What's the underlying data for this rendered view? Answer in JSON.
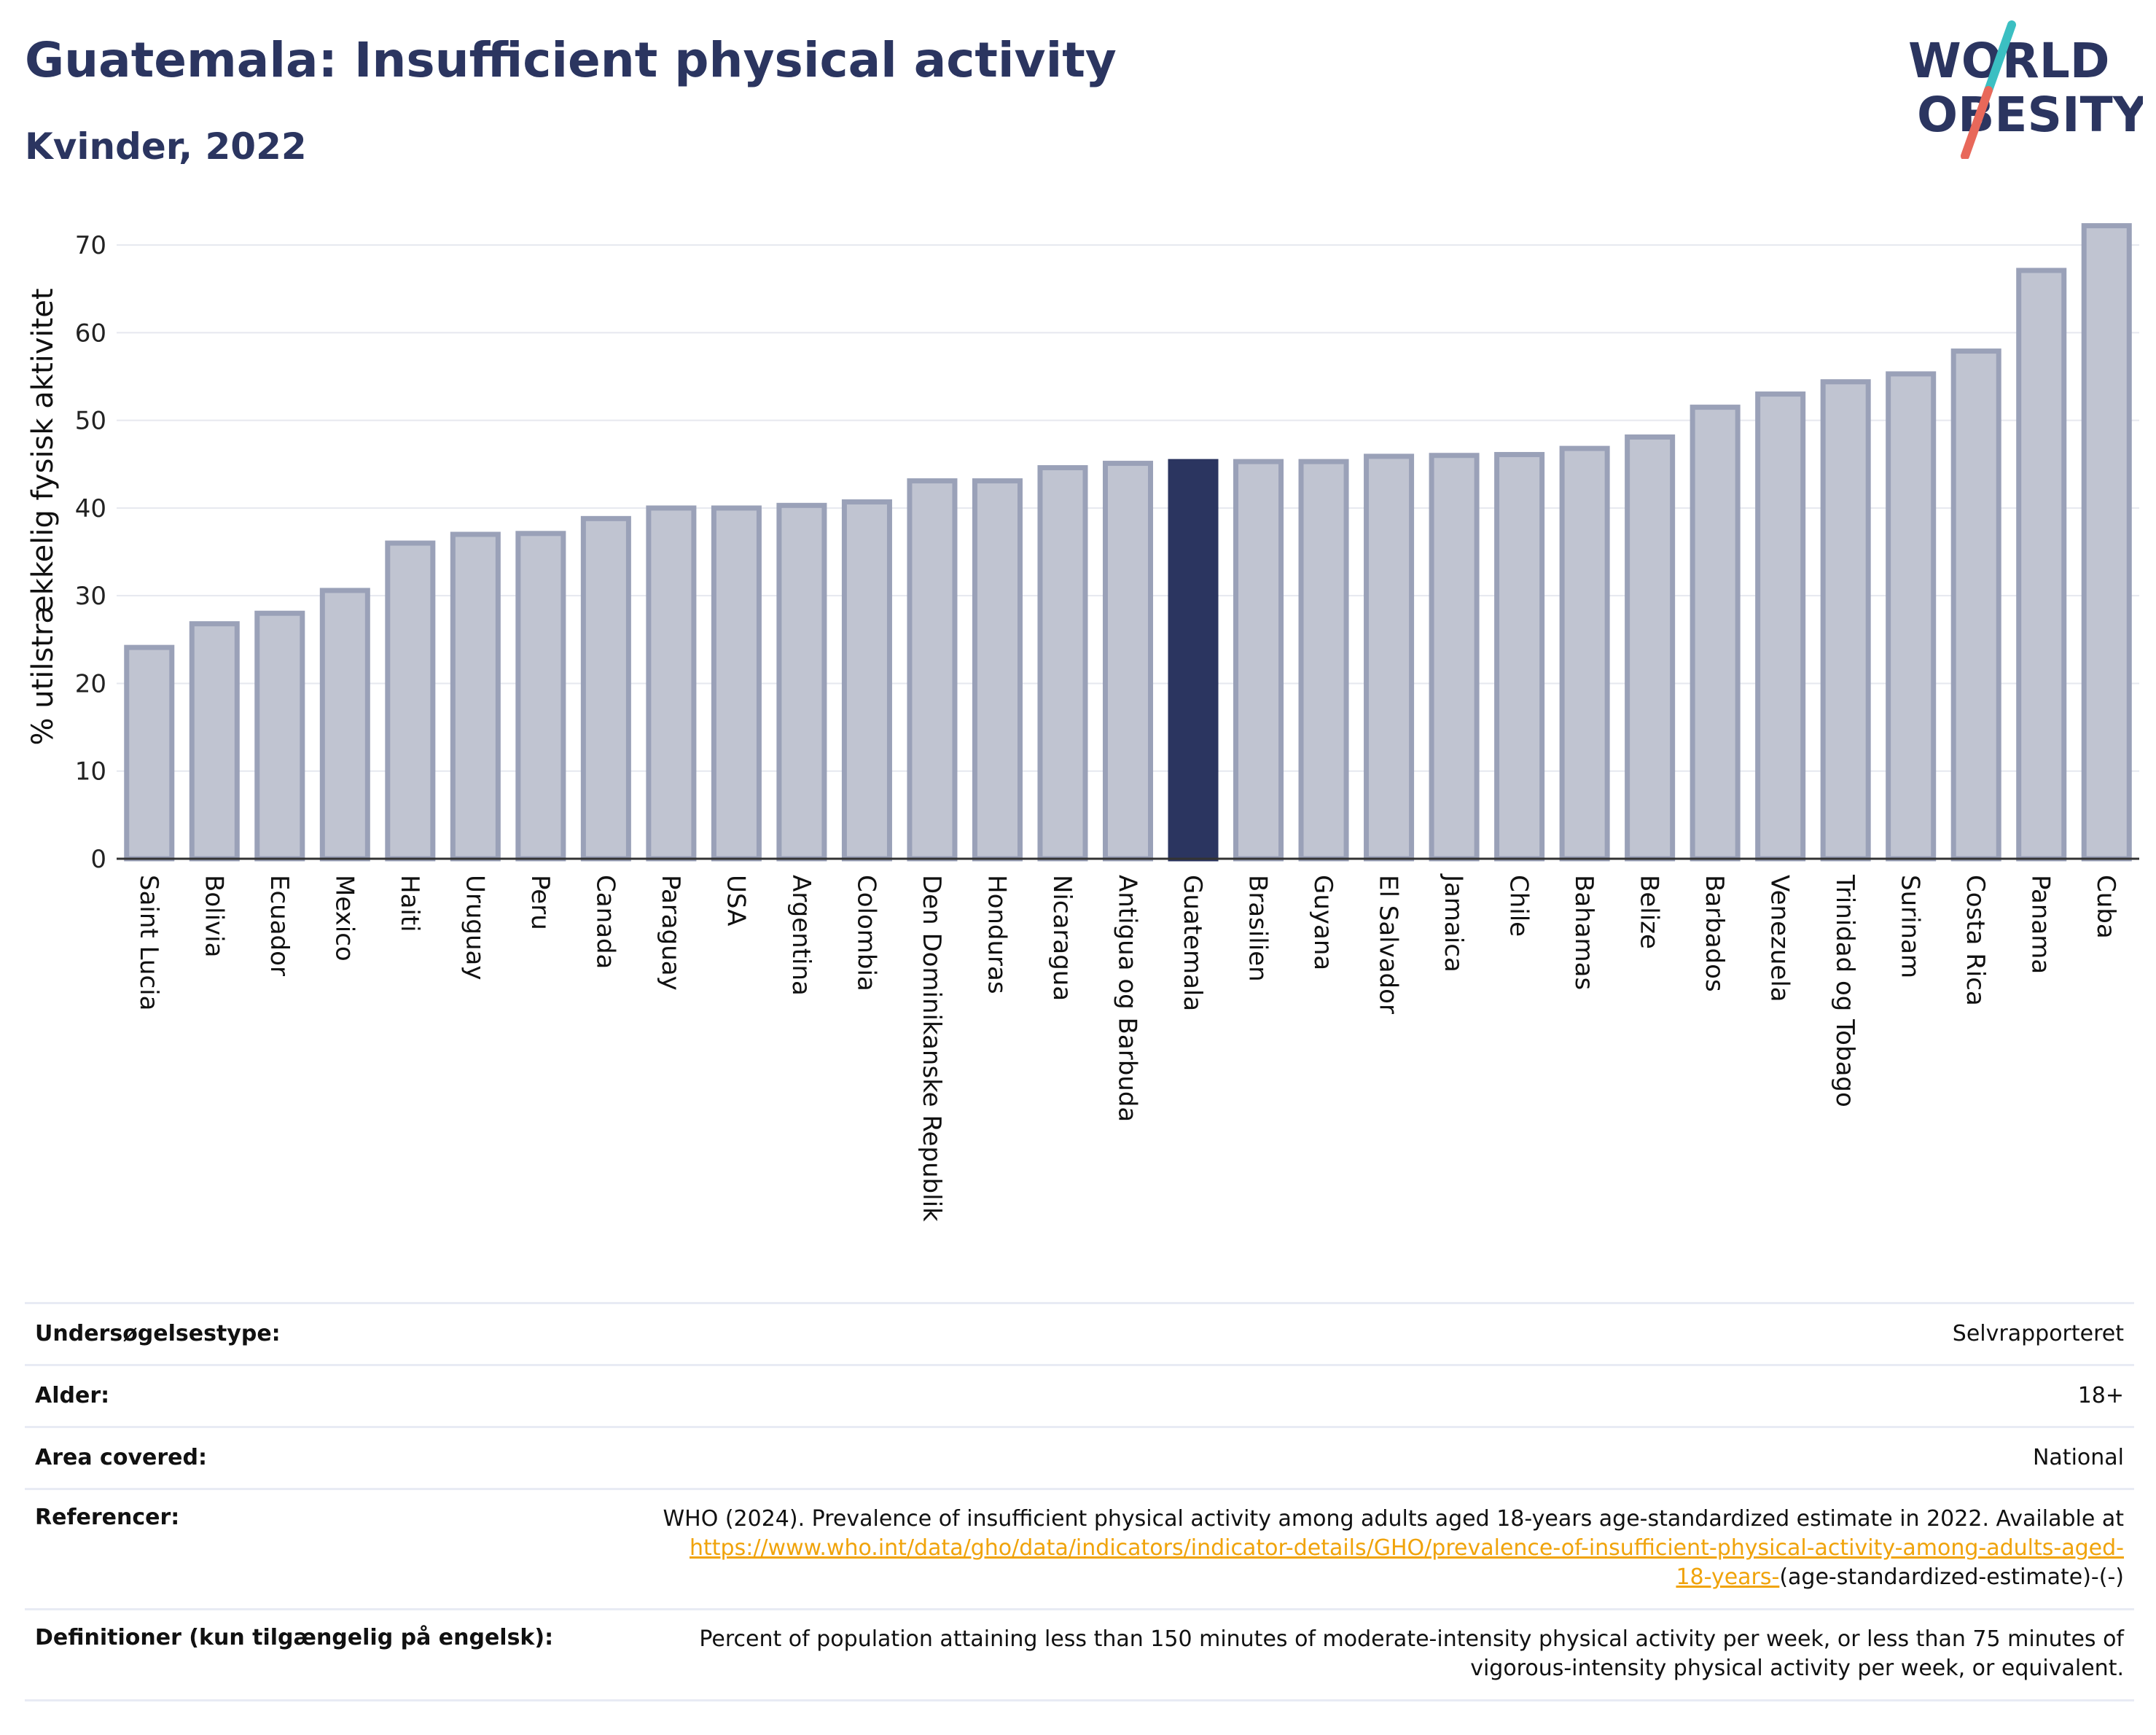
{
  "header": {
    "title": "Guatemala: Insufficient physical activity",
    "subtitle": "Kvinder, 2022"
  },
  "logo": {
    "line1": "WORLD",
    "line2": "OBESITY",
    "text_color": "#2b3560",
    "slash_colors": [
      "#3bbfc2",
      "#e8685a"
    ]
  },
  "colors": {
    "bar_default_fill": "#c0c4d1",
    "bar_default_stroke": "#9aa1b8",
    "bar_highlight": "#2b3560",
    "gridline": "#e6e8ef",
    "link": "#f0a30a"
  },
  "chart_data": {
    "type": "bar",
    "ylabel": "% utilstrækkelig fysisk aktivitet",
    "xlabel": "",
    "ylim": [
      0,
      73
    ],
    "yticks": [
      0,
      10,
      20,
      30,
      40,
      50,
      60,
      70
    ],
    "grid": true,
    "highlight": "Guatemala",
    "categories": [
      "Saint Lucia",
      "Bolivia",
      "Ecuador",
      "Mexico",
      "Haiti",
      "Uruguay",
      "Peru",
      "Canada",
      "Paraguay",
      "USA",
      "Argentina",
      "Colombia",
      "Den Dominikanske Republik",
      "Honduras",
      "Nicaragua",
      "Antigua og Barbuda",
      "Guatemala",
      "Brasilien",
      "Guyana",
      "El Salvador",
      "Jamaica",
      "Chile",
      "Bahamas",
      "Belize",
      "Barbados",
      "Venezuela",
      "Trinidad og Tobago",
      "Surinam",
      "Costa Rica",
      "Panama",
      "Cuba"
    ],
    "values": [
      24.1,
      26.8,
      28.0,
      30.6,
      36.0,
      37.0,
      37.1,
      38.8,
      40.0,
      40.0,
      40.3,
      40.7,
      43.1,
      43.1,
      44.6,
      45.1,
      45.3,
      45.3,
      45.3,
      45.9,
      46.0,
      46.1,
      46.8,
      48.1,
      51.5,
      53.0,
      54.4,
      55.3,
      57.9,
      67.1,
      72.2
    ]
  },
  "metadata": {
    "rows": [
      {
        "label": "Undersøgelsestype:",
        "value": "Selvrapporteret"
      },
      {
        "label": "Alder:",
        "value": "18+"
      },
      {
        "label": "Area covered:",
        "value": "National"
      }
    ],
    "references": {
      "label": "Referencer:",
      "text": "WHO (2024). Prevalence of insufficient physical activity among adults aged 18-years age-standardized estimate in 2022. Available at",
      "link_line1": "https://www.who.int/data/gho/data/indicators/indicator-details/GHO/prevalence-of-insufficient-physical-activity-among-adults-aged-",
      "link_line2": "18-years-",
      "suffix": "(age-standardized-estimate)-(-)"
    },
    "definitions": {
      "label": "Definitioner (kun tilgængelig på engelsk):",
      "line1": "Percent of population attaining less than 150 minutes of moderate-intensity physical activity per week, or less than 75 minutes of",
      "line2": "vigorous-intensity physical activity per week, or equivalent."
    }
  }
}
